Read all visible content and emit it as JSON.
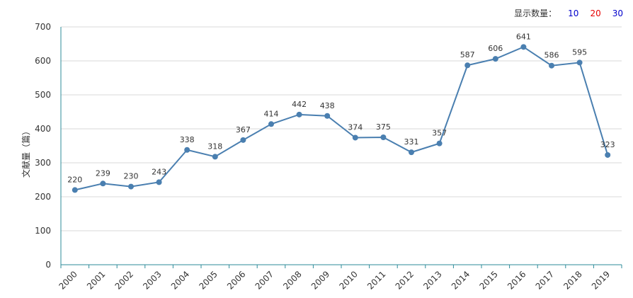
{
  "controls": {
    "label": "显示数量：",
    "options": [
      {
        "label": "10",
        "color": "#0000cc"
      },
      {
        "label": "20",
        "color": "#e60000"
      },
      {
        "label": "30",
        "color": "#0000cc"
      }
    ]
  },
  "chart_data": {
    "type": "line",
    "ylabel": "文献量（篇）",
    "xlabel": "",
    "x": [
      "2000",
      "2001",
      "2002",
      "2003",
      "2004",
      "2005",
      "2006",
      "2007",
      "2008",
      "2009",
      "2010",
      "2011",
      "2012",
      "2013",
      "2014",
      "2015",
      "2016",
      "2017",
      "2018",
      "2019"
    ],
    "values": [
      220,
      239,
      230,
      243,
      338,
      318,
      367,
      414,
      442,
      438,
      374,
      375,
      331,
      357,
      587,
      606,
      641,
      586,
      595,
      323
    ],
    "ylim": [
      0,
      700
    ],
    "yticks": [
      "0",
      "100",
      "200",
      "300",
      "400",
      "500",
      "600",
      "700"
    ],
    "grid": true,
    "line_color": "#4a7fb0",
    "axis_color": "#2e8b9a",
    "grid_color": "#d9d9d9"
  }
}
